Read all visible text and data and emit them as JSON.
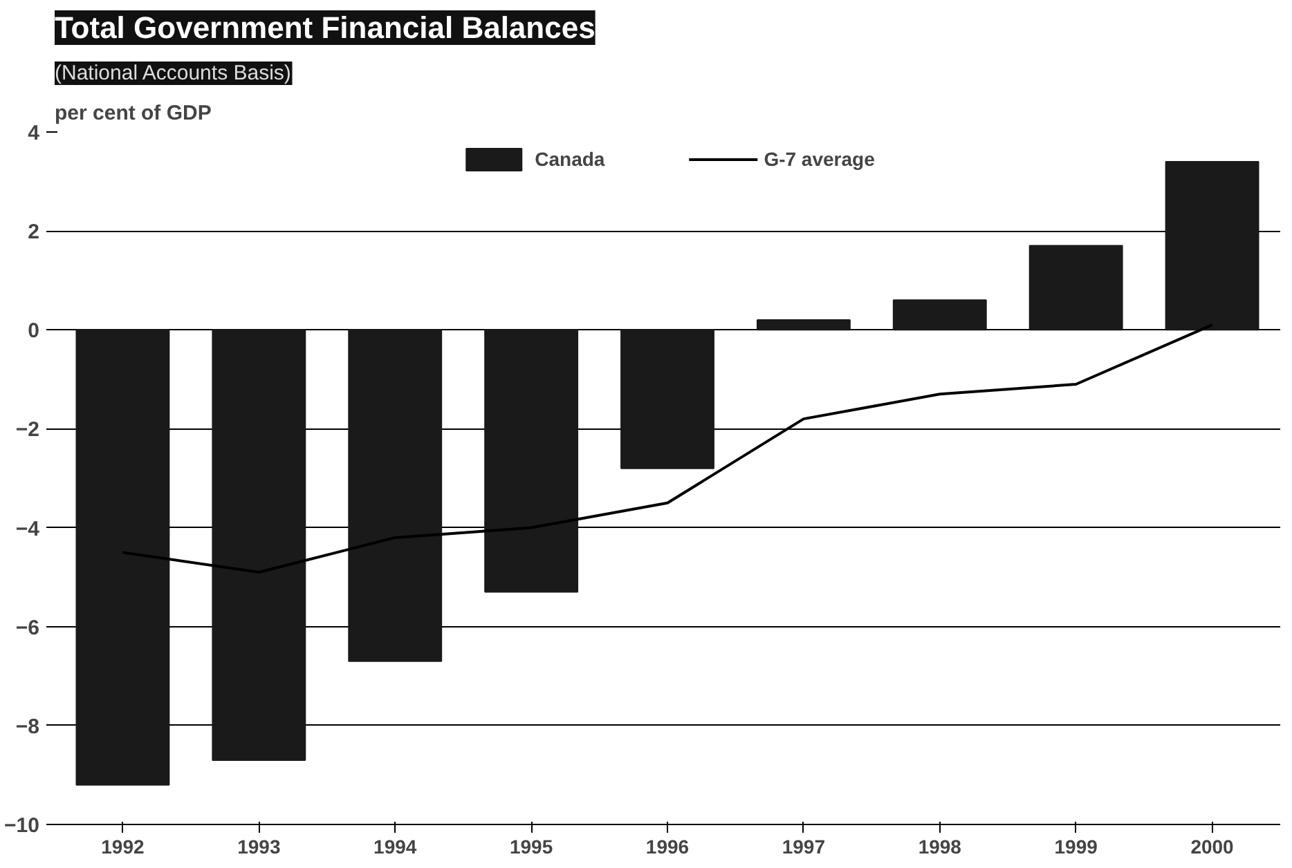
{
  "chart_data": {
    "type": "bar",
    "title": "Total Government Financial Balances",
    "subtitle": "(National Accounts Basis)",
    "ylabel": "per cent of GDP",
    "categories": [
      "1992",
      "1993",
      "1994",
      "1995",
      "1996",
      "1997",
      "1998",
      "1999",
      "2000"
    ],
    "series": [
      {
        "name": "Canada",
        "color": "#1a1a1a",
        "values": [
          -9.2,
          -8.7,
          -6.7,
          -5.3,
          -2.8,
          0.2,
          0.6,
          1.7,
          3.4
        ]
      },
      {
        "name": "G-7 average",
        "type": "line",
        "color": "#000000",
        "values": [
          -4.5,
          -4.9,
          -4.2,
          -4.0,
          -3.5,
          -1.8,
          -1.3,
          -1.1,
          0.1
        ]
      }
    ],
    "ylim": [
      -10,
      4
    ],
    "yticks": [
      -10,
      -8,
      -6,
      -4,
      -2,
      0,
      2,
      4
    ],
    "grid": "y",
    "legend": "top"
  }
}
